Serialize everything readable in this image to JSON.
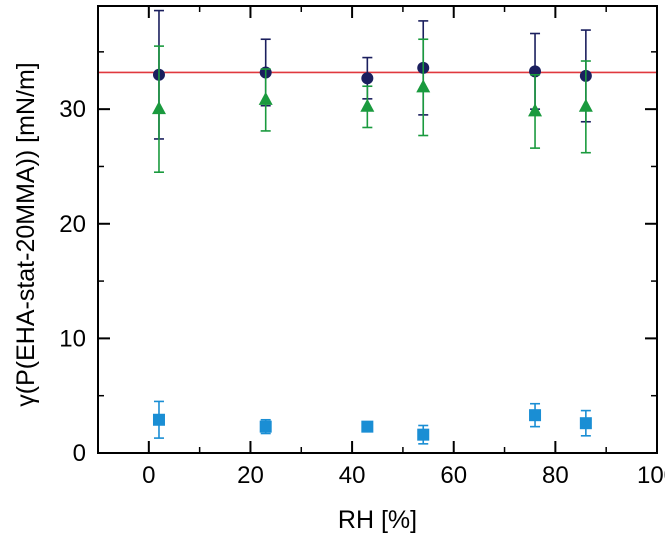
{
  "chart_data": {
    "type": "scatter",
    "xlabel": "RH [%]",
    "ylabel": "γ(P(EHA-stat-20MMA)) [mN/m]",
    "xlim": [
      -10,
      100
    ],
    "ylim": [
      0,
      39
    ],
    "x_ticks": [
      0,
      20,
      40,
      60,
      80,
      100
    ],
    "y_ticks": [
      0,
      10,
      20,
      30
    ],
    "x_tick_labels": [
      "0",
      "20",
      "40",
      "60",
      "80",
      "100"
    ],
    "y_tick_labels": [
      "0",
      "10",
      "20",
      "30"
    ],
    "grid": false,
    "reference_line": {
      "y": 33.2,
      "color": "#e0393e"
    },
    "series": [
      {
        "marker": "circle",
        "color": "#1b1f5e",
        "x": [
          2,
          23,
          43,
          54,
          76,
          86
        ],
        "y": [
          33.0,
          33.2,
          32.7,
          33.6,
          33.3,
          32.9
        ],
        "err": [
          5.6,
          2.9,
          1.8,
          4.1,
          3.3,
          4.0
        ]
      },
      {
        "marker": "triangle",
        "color": "#1a9a3e",
        "x": [
          2,
          23,
          43,
          54,
          76,
          86
        ],
        "y": [
          30.0,
          30.8,
          30.2,
          31.9,
          29.8,
          30.2
        ],
        "err": [
          5.5,
          2.7,
          1.8,
          4.2,
          3.2,
          4.0
        ]
      },
      {
        "marker": "square",
        "color": "#1a8ed4",
        "x": [
          2,
          23,
          43,
          54,
          76,
          86
        ],
        "y": [
          2.9,
          2.3,
          2.3,
          1.6,
          3.3,
          2.6
        ],
        "err": [
          1.6,
          0.6,
          0.3,
          0.8,
          1.0,
          1.1
        ]
      }
    ]
  }
}
